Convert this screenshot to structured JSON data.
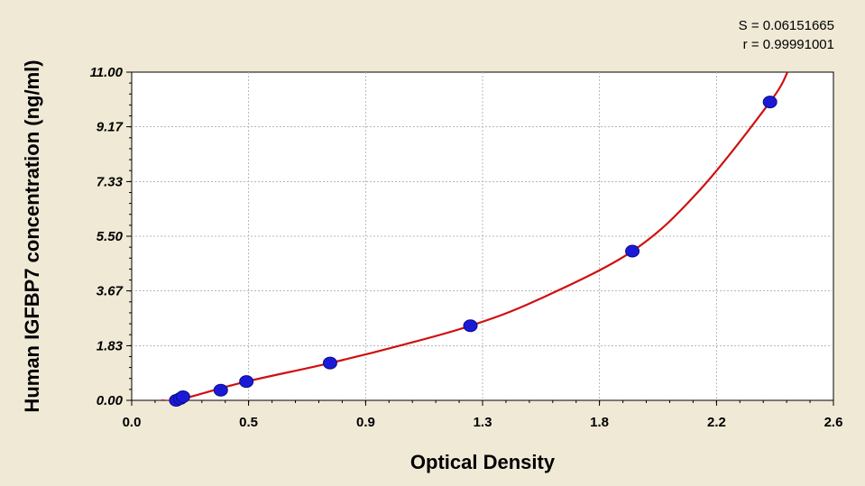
{
  "stats": {
    "s_text": "S = 0.06151665",
    "r_text": "r = 0.99991001"
  },
  "chart_data": {
    "type": "scatter",
    "xlabel": "Optical Density",
    "ylabel": "Human IGFBP7 concentration (ng/ml)",
    "xlim": [
      0.0,
      2.6
    ],
    "ylim": [
      0.0,
      11.0
    ],
    "x_ticks": [
      "0.0",
      "0.5",
      "0.9",
      "1.3",
      "1.8",
      "2.2",
      "2.6"
    ],
    "x_tick_values": [
      0.0,
      0.433,
      0.867,
      1.3,
      1.733,
      2.167,
      2.6
    ],
    "y_ticks": [
      "0.00",
      "1.83",
      "3.67",
      "5.50",
      "7.33",
      "9.17",
      "11.00"
    ],
    "y_tick_values": [
      0.0,
      1.83,
      3.67,
      5.5,
      7.33,
      9.17,
      11.0
    ],
    "grid": true,
    "series": [
      {
        "kind": "points",
        "color": "#1a1ad6",
        "x": [
          0.165,
          0.18,
          0.19,
          0.33,
          0.425,
          0.735,
          1.255,
          1.855,
          2.365
        ],
        "y": [
          0.0,
          0.06,
          0.12,
          0.34,
          0.63,
          1.25,
          2.5,
          5.0,
          10.0
        ]
      },
      {
        "kind": "curve",
        "color": "#d01010",
        "x": [
          0.11,
          0.165,
          0.25,
          0.425,
          0.735,
          1.0,
          1.255,
          1.5,
          1.855,
          2.1,
          2.365,
          2.43
        ],
        "y": [
          0.0,
          0.0,
          0.2,
          0.63,
          1.25,
          1.85,
          2.5,
          3.35,
          5.0,
          7.0,
          10.0,
          11.0
        ]
      }
    ]
  }
}
